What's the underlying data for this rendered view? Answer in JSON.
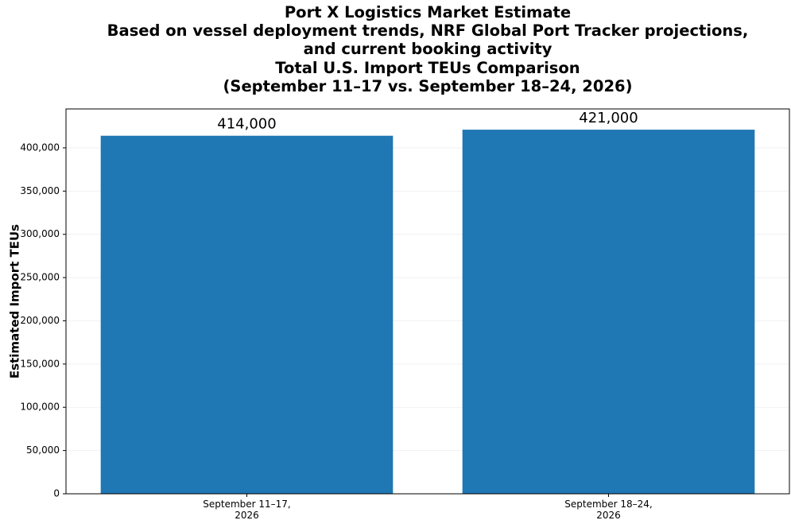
{
  "chart_data": {
    "type": "bar",
    "title": "Port X Logistics Market Estimate\nBased on vessel deployment trends, NRF Global Port Tracker projections,\nand current booking activity\nTotal U.S. Import TEUs Comparison\n(September 11–17 vs. September 18–24, 2026)",
    "y_label": "Estimated Import TEUs",
    "categories": [
      "September 11–17,\n2026",
      "September 18–24,\n2026"
    ],
    "values": [
      414000,
      421000
    ],
    "value_labels": [
      "414,000",
      "421,000"
    ],
    "color": "#1f77b4",
    "ylim": [
      0,
      445000
    ],
    "yticks": [
      0,
      {
        "value": 50000,
        "label": "50,000"
      },
      {
        "value": 100000,
        "label": "100,000"
      },
      {
        "value": 150000,
        "label": "150,000"
      },
      {
        "value": 200000,
        "label": "200,000"
      },
      {
        "value": 250000,
        "label": "250,000"
      },
      {
        "value": 300000,
        "label": "300,000"
      },
      {
        "value": 350000,
        "label": "350,000"
      },
      {
        "value": 400000,
        "label": "400,000"
      }
    ],
    "grid": true
  }
}
